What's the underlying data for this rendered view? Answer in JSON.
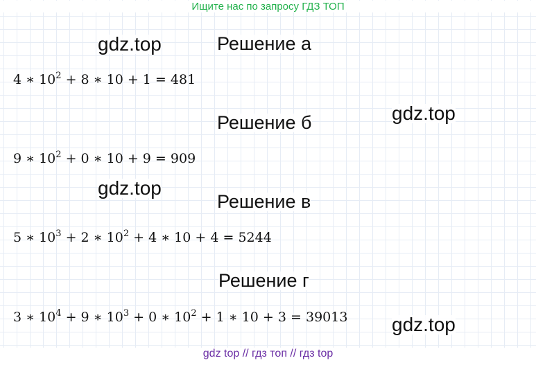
{
  "header": {
    "banner": "Ищите нас по запросу ГДЗ ТОП"
  },
  "watermarks": [
    "gdz.top",
    "gdz.top",
    "gdz.top",
    "gdz.top"
  ],
  "solutions": [
    {
      "heading": "Решение а",
      "terms": [
        {
          "base": "4 ∗ 10",
          "exp": "2"
        },
        {
          "base": " + 8 ∗ 10 + 1 = 481",
          "exp": ""
        }
      ]
    },
    {
      "heading": "Решение б",
      "terms": [
        {
          "base": "9 ∗ 10",
          "exp": "2"
        },
        {
          "base": " + 0 ∗ 10 + 9 = 909",
          "exp": ""
        }
      ]
    },
    {
      "heading": "Решение в",
      "terms": [
        {
          "base": "5 ∗ 10",
          "exp": "3"
        },
        {
          "base": " + 2 ∗ 10",
          "exp": "2"
        },
        {
          "base": " + 4 ∗ 10 + 4 = 5244",
          "exp": ""
        }
      ]
    },
    {
      "heading": "Решение г",
      "terms": [
        {
          "base": "3 ∗ 10",
          "exp": "4"
        },
        {
          "base": " + 9 ∗ 10",
          "exp": "3"
        },
        {
          "base": " + 0 ∗ 10",
          "exp": "2"
        },
        {
          "base": " + 1 ∗ 10 + 3 = 39013",
          "exp": ""
        }
      ]
    }
  ],
  "footer": {
    "banner": "gdz top  //  гдз топ  //  гдз top"
  }
}
